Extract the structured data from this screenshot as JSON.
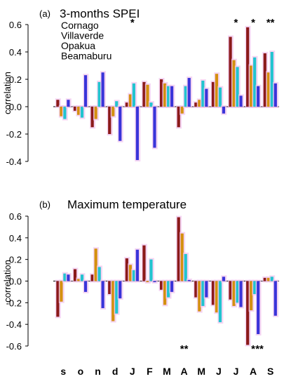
{
  "colors": {
    "cornago": "#8b1a1a",
    "villaverde": "#d4900f",
    "opakua": "#22c4cf",
    "beamaburu": "#3a34d9",
    "highlight": "#f2c8ef",
    "axis": "#000000"
  },
  "chart_data": [
    {
      "type": "bar",
      "panel_label": "(a)",
      "title": "3-months SPEI",
      "ylabel": "correlation",
      "ylim": [
        -0.4,
        0.6
      ],
      "yticks": [
        "0.6",
        "0.4",
        "0.2",
        "0.0",
        "-0.2",
        "-0.4"
      ],
      "ytick_values": [
        0.6,
        0.4,
        0.2,
        0.0,
        -0.2,
        -0.4
      ],
      "categories": [
        "s",
        "o",
        "n",
        "d",
        "J",
        "F",
        "M",
        "A",
        "M",
        "J",
        "J",
        "A",
        "S"
      ],
      "legend": {
        "placement": "top-left",
        "entries": [
          "Cornago",
          "Villaverde",
          "Opakua",
          "Beamaburu"
        ]
      },
      "series": [
        {
          "name": "Cornago",
          "values": [
            0.05,
            -0.03,
            -0.15,
            -0.2,
            0.03,
            0.18,
            0.2,
            -0.15,
            0.03,
            0.18,
            0.51,
            0.58,
            0.39
          ]
        },
        {
          "name": "Villaverde",
          "values": [
            -0.07,
            -0.06,
            -0.09,
            -0.07,
            0.09,
            0.16,
            0.17,
            -0.05,
            0.05,
            0.24,
            0.34,
            0.3,
            0.25
          ]
        },
        {
          "name": "Opakua",
          "values": [
            -0.09,
            -0.08,
            0.18,
            0.04,
            0.17,
            0.03,
            0.15,
            0.15,
            0.19,
            0.14,
            0.29,
            0.36,
            0.4
          ]
        },
        {
          "name": "Beamaburu",
          "values": [
            0.05,
            0.23,
            0.25,
            -0.25,
            -0.39,
            -0.3,
            0.15,
            0.21,
            0.13,
            -0.05,
            0.08,
            0.15,
            0.17
          ]
        }
      ],
      "significance": [
        {
          "category_index": 4,
          "label": "*",
          "position": "top"
        },
        {
          "category_index": 10,
          "label": "*",
          "position": "top"
        },
        {
          "category_index": 11,
          "label": "*",
          "position": "top"
        },
        {
          "category_index": 12,
          "label": "**",
          "position": "top"
        }
      ]
    },
    {
      "type": "bar",
      "panel_label": "(b)",
      "title": "Maximum temperature",
      "ylabel": "correlation",
      "ylim": [
        -0.6,
        0.6
      ],
      "yticks": [
        "0.6",
        "0.4",
        "0.2",
        "0.0",
        "-0.2",
        "-0.4",
        "-0.6"
      ],
      "ytick_values": [
        0.6,
        0.4,
        0.2,
        0.0,
        -0.2,
        -0.4,
        -0.6
      ],
      "categories": [
        "s",
        "o",
        "n",
        "d",
        "J",
        "F",
        "M",
        "A",
        "M",
        "J",
        "J",
        "A",
        "S"
      ],
      "series": [
        {
          "name": "Cornago",
          "values": [
            -0.33,
            0.11,
            0.06,
            -0.12,
            0.21,
            0.33,
            -0.08,
            0.59,
            -0.15,
            -0.22,
            -0.17,
            -0.59,
            0.03
          ]
        },
        {
          "name": "Villaverde",
          "values": [
            -0.19,
            0.02,
            0.3,
            -0.37,
            0.15,
            -0.01,
            -0.22,
            0.44,
            -0.28,
            -0.29,
            -0.23,
            -0.27,
            0.03
          ]
        },
        {
          "name": "Opakua",
          "values": [
            0.07,
            0.06,
            0.13,
            -0.3,
            0.1,
            0.2,
            -0.15,
            0.25,
            -0.23,
            -0.38,
            -0.2,
            -0.12,
            0.04
          ]
        },
        {
          "name": "Beamaburu",
          "values": [
            0.06,
            -0.1,
            -0.25,
            -0.16,
            0.29,
            -0.01,
            -0.1,
            0.01,
            -0.15,
            0.04,
            -0.24,
            -0.49,
            -0.32
          ]
        }
      ],
      "significance": [
        {
          "category_index": 7,
          "label": "**",
          "position": "bottom"
        },
        {
          "category_index": 11,
          "label": "*",
          "position": "bottom"
        },
        {
          "category_index": 11,
          "label": "**",
          "position": "bottom-right"
        }
      ]
    }
  ]
}
